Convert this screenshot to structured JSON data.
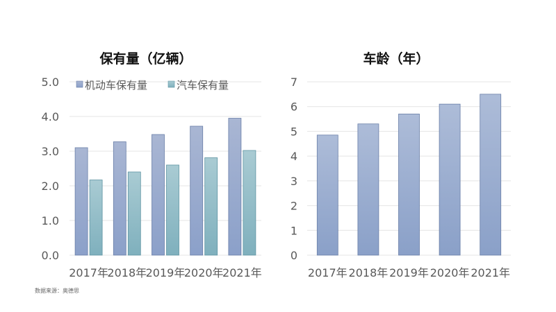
{
  "chart_data": [
    {
      "type": "bar",
      "title": "保有量（亿辆）",
      "categories": [
        "2017年",
        "2018年",
        "2019年",
        "2020年",
        "2021年"
      ],
      "series": [
        {
          "name": "机动车保有量",
          "values": [
            3.1,
            3.27,
            3.48,
            3.72,
            3.95
          ],
          "color_top": "#a9b6d3",
          "color_bottom": "#8ba0c9",
          "stroke": "#6a7fa8"
        },
        {
          "name": "汽车保有量",
          "values": [
            2.17,
            2.4,
            2.6,
            2.81,
            3.02
          ],
          "color_top": "#a9cbd3",
          "color_bottom": "#7fb0bd",
          "stroke": "#5f95a3"
        }
      ],
      "ylim": [
        0,
        5
      ],
      "yticks": [
        "0.0",
        "1.0",
        "2.0",
        "3.0",
        "4.0",
        "5.0"
      ],
      "grid": true,
      "legend": "top"
    },
    {
      "type": "bar",
      "title": "车龄（年）",
      "categories": [
        "2017年",
        "2018年",
        "2019年",
        "2020年",
        "2021年"
      ],
      "series": [
        {
          "values": [
            4.85,
            5.3,
            5.7,
            6.1,
            6.5
          ],
          "color_top": "#adbcd8",
          "color_bottom": "#8aa0c8",
          "stroke": "#6a7fa8"
        }
      ],
      "ylim": [
        0,
        7
      ],
      "yticks": [
        "0",
        "1",
        "2",
        "3",
        "4",
        "5",
        "6",
        "7"
      ],
      "grid": true
    }
  ],
  "source": "数据来源：奥德思"
}
